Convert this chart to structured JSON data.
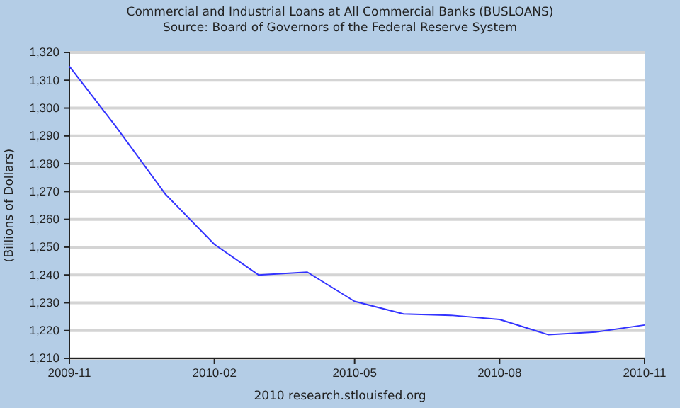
{
  "chart_data": {
    "type": "line",
    "title": "Commercial and Industrial Loans at All Commercial Banks (BUSLOANS)",
    "subtitle": "Source: Board of Governors of the Federal Reserve System",
    "ylabel": "(Billions of Dollars)",
    "annotations": [
      "2010 research.stlouisfed.org"
    ],
    "x": [
      "2009-11",
      "2009-12",
      "2010-01",
      "2010-02",
      "2010-03",
      "2010-04",
      "2010-05",
      "2010-06",
      "2010-07",
      "2010-08",
      "2010-09",
      "2010-10",
      "2010-11"
    ],
    "series": [
      {
        "color": "#3333ff",
        "values": [
          1315,
          1293,
          1269,
          1251,
          1240,
          1241,
          1230.5,
          1226,
          1225.5,
          1224,
          1218.5,
          1219.5,
          1222
        ]
      }
    ],
    "xlim": [
      "2009-11",
      "2010-11"
    ],
    "xticks": [
      {
        "value": "2009-11",
        "label": "2009-11"
      },
      {
        "value": "2010-02",
        "label": "2010-02"
      },
      {
        "value": "2010-05",
        "label": "2010-05"
      },
      {
        "value": "2010-08",
        "label": "2010-08"
      },
      {
        "value": "2010-11",
        "label": "2010-11"
      }
    ],
    "ylim": [
      1210,
      1320
    ],
    "yticks": [
      {
        "value": 1210,
        "label": "1,210"
      },
      {
        "value": 1220,
        "label": "1,220"
      },
      {
        "value": 1230,
        "label": "1,230"
      },
      {
        "value": 1240,
        "label": "1,240"
      },
      {
        "value": 1250,
        "label": "1,250"
      },
      {
        "value": 1260,
        "label": "1,260"
      },
      {
        "value": 1270,
        "label": "1,270"
      },
      {
        "value": 1280,
        "label": "1,280"
      },
      {
        "value": 1290,
        "label": "1,290"
      },
      {
        "value": 1300,
        "label": "1,300"
      },
      {
        "value": 1310,
        "label": "1,310"
      },
      {
        "value": 1320,
        "label": "1,320"
      }
    ],
    "grid": "y",
    "marker": "none",
    "line_style": "solid"
  }
}
